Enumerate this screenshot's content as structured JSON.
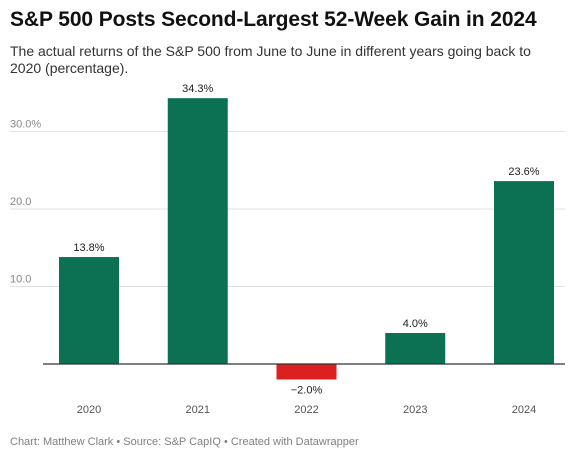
{
  "title": "S&P 500 Posts Second-Largest 52-Week Gain in 2024",
  "subtitle": "The actual returns of the S&P 500 from June to June in different years going back to 2020 (percentage).",
  "footer": "Chart: Matthew Clark • Source: S&P CapIQ • Created with Datawrapper",
  "colors": {
    "positive": "#0c7053",
    "negative": "#dc1f1f",
    "grid": "#e2e2e2",
    "axis": "#333333"
  },
  "chart_data": {
    "type": "bar",
    "categories": [
      "2020",
      "2021",
      "2022",
      "2023",
      "2024"
    ],
    "values": [
      13.8,
      34.3,
      -2.0,
      4.0,
      23.6
    ],
    "data_labels": [
      "13.8%",
      "34.3%",
      "−2.0%",
      "4.0%",
      "23.6%"
    ],
    "y_ticks": [
      10,
      20,
      30
    ],
    "y_tick_labels": [
      "10.0",
      "20.0",
      "30.0%"
    ],
    "ylim": [
      -2.0,
      34.3
    ],
    "grid": true,
    "legend": "none",
    "xlabel": "",
    "ylabel": ""
  }
}
